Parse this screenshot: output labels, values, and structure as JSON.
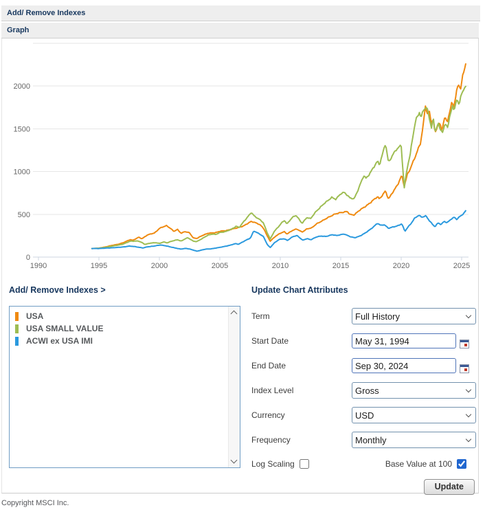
{
  "accordion": {
    "indexes_bar": "Add/ Remove Indexes",
    "graph_bar": "Graph"
  },
  "legend_panel": {
    "heading": "Add/ Remove Indexes >",
    "items": [
      {
        "label": "USA",
        "color": "#ef8a10"
      },
      {
        "label": "USA SMALL VALUE",
        "color": "#9ebd53"
      },
      {
        "label": "ACWI ex USA IMI",
        "color": "#2a99de"
      }
    ]
  },
  "form": {
    "heading": "Update Chart Attributes",
    "fields": [
      {
        "name": "term",
        "label": "Term",
        "type": "select",
        "value": "Full History"
      },
      {
        "name": "start-date",
        "label": "Start Date",
        "type": "date",
        "value": "May 31, 1994"
      },
      {
        "name": "end-date",
        "label": "End Date",
        "type": "date",
        "value": "Sep 30, 2024"
      },
      {
        "name": "index-level",
        "label": "Index Level",
        "type": "select",
        "value": "Gross"
      },
      {
        "name": "currency",
        "label": "Currency",
        "type": "select",
        "value": "USD"
      },
      {
        "name": "frequency",
        "label": "Frequency",
        "type": "select",
        "value": "Monthly"
      }
    ],
    "log_scaling_label": "Log Scaling",
    "log_scaling_checked": false,
    "base_value_label": "Base Value at 100",
    "base_value_checked": true,
    "update_button": "Update"
  },
  "footer": {
    "copyright": "Copyright MSCI Inc."
  },
  "chart_data": {
    "type": "line",
    "frequency": "monthly",
    "x_ticks": [
      1990,
      1995,
      2000,
      2005,
      2010,
      2015,
      2020,
      2025
    ],
    "y_ticks": [
      0,
      500,
      1000,
      1500,
      2000
    ],
    "y_max_grid": 2500,
    "grid": true,
    "base_value": 100,
    "colors": {
      "grid": "#e6e6e6",
      "axis": "#ccd5e0",
      "tick_label": "#666666"
    },
    "series": [
      {
        "name": "USA",
        "color": "#ef8a10",
        "points": [
          [
            1994.42,
            100
          ],
          [
            1995,
            104
          ],
          [
            1995.5,
            117
          ],
          [
            1996,
            134
          ],
          [
            1996.5,
            147
          ],
          [
            1997,
            167
          ],
          [
            1997.6,
            205
          ],
          [
            1997.8,
            196
          ],
          [
            1998.3,
            232
          ],
          [
            1998.55,
            214
          ],
          [
            1999,
            258
          ],
          [
            1999.6,
            282
          ],
          [
            2000,
            335
          ],
          [
            2000.3,
            352
          ],
          [
            2000.6,
            368
          ],
          [
            2000.9,
            338
          ],
          [
            2001.2,
            300
          ],
          [
            2001.5,
            322
          ],
          [
            2001.8,
            278
          ],
          [
            2002.1,
            298
          ],
          [
            2002.5,
            282
          ],
          [
            2002.8,
            224
          ],
          [
            2003.1,
            218
          ],
          [
            2003.6,
            255
          ],
          [
            2004,
            278
          ],
          [
            2004.6,
            284
          ],
          [
            2005,
            302
          ],
          [
            2005.5,
            308
          ],
          [
            2006,
            328
          ],
          [
            2006.5,
            342
          ],
          [
            2007,
            368
          ],
          [
            2007.6,
            416
          ],
          [
            2007.9,
            406
          ],
          [
            2008.3,
            380
          ],
          [
            2008.65,
            330
          ],
          [
            2008.9,
            252
          ],
          [
            2009.17,
            186
          ],
          [
            2009.6,
            242
          ],
          [
            2010,
            280
          ],
          [
            2010.35,
            296
          ],
          [
            2010.55,
            268
          ],
          [
            2011,
            312
          ],
          [
            2011.35,
            328
          ],
          [
            2011.8,
            292
          ],
          [
            2012.2,
            330
          ],
          [
            2012.6,
            340
          ],
          [
            2013,
            390
          ],
          [
            2013.5,
            425
          ],
          [
            2014,
            468
          ],
          [
            2014.5,
            500
          ],
          [
            2015,
            522
          ],
          [
            2015.55,
            532
          ],
          [
            2015.75,
            498
          ],
          [
            2016.1,
            494
          ],
          [
            2016.5,
            540
          ],
          [
            2017,
            590
          ],
          [
            2017.5,
            640
          ],
          [
            2018.05,
            710
          ],
          [
            2018.2,
            680
          ],
          [
            2018.7,
            770
          ],
          [
            2018.95,
            680
          ],
          [
            2019.3,
            760
          ],
          [
            2019.7,
            840
          ],
          [
            2020.05,
            960
          ],
          [
            2020.25,
            830
          ],
          [
            2020.5,
            960
          ],
          [
            2020.75,
            1030
          ],
          [
            2021,
            1120
          ],
          [
            2021.3,
            1230
          ],
          [
            2021.6,
            1330
          ],
          [
            2021.9,
            1620
          ],
          [
            2022.0,
            1780
          ],
          [
            2022.15,
            1680
          ],
          [
            2022.3,
            1720
          ],
          [
            2022.5,
            1560
          ],
          [
            2022.65,
            1620
          ],
          [
            2022.8,
            1430
          ],
          [
            2023.0,
            1540
          ],
          [
            2023.15,
            1580
          ],
          [
            2023.35,
            1480
          ],
          [
            2023.6,
            1640
          ],
          [
            2023.8,
            1560
          ],
          [
            2024.0,
            1700
          ],
          [
            2024.2,
            1810
          ],
          [
            2024.35,
            1760
          ],
          [
            2024.55,
            1920
          ],
          [
            2024.75,
            2010
          ],
          [
            2024.9,
            1960
          ],
          [
            2025.05,
            2090
          ],
          [
            2025.2,
            2180
          ],
          [
            2025.35,
            2270
          ]
        ]
      },
      {
        "name": "USA SMALL VALUE",
        "color": "#9ebd53",
        "points": [
          [
            1994.42,
            100
          ],
          [
            1995,
            103
          ],
          [
            1995.5,
            112
          ],
          [
            1996,
            126
          ],
          [
            1996.5,
            136
          ],
          [
            1997,
            152
          ],
          [
            1997.6,
            186
          ],
          [
            1998.25,
            188
          ],
          [
            1998.6,
            166
          ],
          [
            1998.8,
            148
          ],
          [
            1999.2,
            162
          ],
          [
            1999.7,
            168
          ],
          [
            2000,
            160
          ],
          [
            2000.35,
            176
          ],
          [
            2000.65,
            166
          ],
          [
            2001,
            186
          ],
          [
            2001.5,
            202
          ],
          [
            2001.8,
            186
          ],
          [
            2002.1,
            212
          ],
          [
            2002.35,
            226
          ],
          [
            2002.8,
            186
          ],
          [
            2003.1,
            182
          ],
          [
            2003.6,
            220
          ],
          [
            2004,
            256
          ],
          [
            2004.4,
            270
          ],
          [
            2004.65,
            262
          ],
          [
            2005,
            288
          ],
          [
            2005.5,
            298
          ],
          [
            2006,
            330
          ],
          [
            2006.35,
            360
          ],
          [
            2006.6,
            344
          ],
          [
            2007,
            420
          ],
          [
            2007.4,
            486
          ],
          [
            2007.6,
            520
          ],
          [
            2007.85,
            480
          ],
          [
            2008.3,
            440
          ],
          [
            2008.6,
            400
          ],
          [
            2008.9,
            290
          ],
          [
            2009.17,
            212
          ],
          [
            2009.5,
            300
          ],
          [
            2009.8,
            345
          ],
          [
            2010.1,
            400
          ],
          [
            2010.35,
            430
          ],
          [
            2010.55,
            385
          ],
          [
            2011,
            465
          ],
          [
            2011.3,
            490
          ],
          [
            2011.8,
            392
          ],
          [
            2012.2,
            465
          ],
          [
            2012.5,
            448
          ],
          [
            2013,
            540
          ],
          [
            2013.5,
            610
          ],
          [
            2013.9,
            655
          ],
          [
            2014.25,
            700
          ],
          [
            2014.6,
            675
          ],
          [
            2015,
            740
          ],
          [
            2015.3,
            760
          ],
          [
            2015.75,
            690
          ],
          [
            2016.1,
            680
          ],
          [
            2016.5,
            810
          ],
          [
            2016.9,
            950
          ],
          [
            2017.1,
            920
          ],
          [
            2017.5,
            1000
          ],
          [
            2018.05,
            1120
          ],
          [
            2018.2,
            1080
          ],
          [
            2018.7,
            1330
          ],
          [
            2018.95,
            1100
          ],
          [
            2019.3,
            1200
          ],
          [
            2019.6,
            1260
          ],
          [
            2020.0,
            1300
          ],
          [
            2020.25,
            810
          ],
          [
            2020.5,
            1050
          ],
          [
            2020.75,
            1200
          ],
          [
            2020.95,
            1400
          ],
          [
            2021.2,
            1600
          ],
          [
            2021.5,
            1700
          ],
          [
            2021.65,
            1630
          ],
          [
            2021.85,
            1720
          ],
          [
            2022.1,
            1750
          ],
          [
            2022.3,
            1650
          ],
          [
            2022.5,
            1520
          ],
          [
            2022.65,
            1620
          ],
          [
            2022.8,
            1460
          ],
          [
            2023.05,
            1560
          ],
          [
            2023.2,
            1500
          ],
          [
            2023.45,
            1470
          ],
          [
            2023.65,
            1560
          ],
          [
            2023.85,
            1520
          ],
          [
            2024.05,
            1650
          ],
          [
            2024.25,
            1780
          ],
          [
            2024.4,
            1720
          ],
          [
            2024.6,
            1850
          ],
          [
            2024.8,
            1790
          ],
          [
            2025.0,
            1900
          ],
          [
            2025.15,
            1950
          ],
          [
            2025.25,
            1990
          ],
          [
            2025.35,
            1995
          ]
        ]
      },
      {
        "name": "ACWI ex USA IMI",
        "color": "#2a99de",
        "points": [
          [
            1994.42,
            100
          ],
          [
            1995,
            100
          ],
          [
            1995.5,
            104
          ],
          [
            1996,
            108
          ],
          [
            1996.5,
            112
          ],
          [
            1997,
            118
          ],
          [
            1997.5,
            128
          ],
          [
            1998,
            122
          ],
          [
            1998.65,
            106
          ],
          [
            1999,
            120
          ],
          [
            1999.5,
            127
          ],
          [
            2000.1,
            142
          ],
          [
            2000.5,
            132
          ],
          [
            2001,
            116
          ],
          [
            2001.75,
            93
          ],
          [
            2002.2,
            102
          ],
          [
            2002.5,
            94
          ],
          [
            2003.1,
            69
          ],
          [
            2003.5,
            82
          ],
          [
            2003.8,
            92
          ],
          [
            2004.3,
            97
          ],
          [
            2004.8,
            108
          ],
          [
            2005.3,
            122
          ],
          [
            2005.8,
            136
          ],
          [
            2006.3,
            158
          ],
          [
            2006.55,
            150
          ],
          [
            2007.2,
            200
          ],
          [
            2007.55,
            225
          ],
          [
            2007.8,
            305
          ],
          [
            2008.3,
            270
          ],
          [
            2008.6,
            240
          ],
          [
            2008.95,
            140
          ],
          [
            2009.17,
            112
          ],
          [
            2009.5,
            165
          ],
          [
            2009.9,
            205
          ],
          [
            2010.3,
            215
          ],
          [
            2010.6,
            195
          ],
          [
            2011.05,
            240
          ],
          [
            2011.4,
            252
          ],
          [
            2011.85,
            196
          ],
          [
            2012.2,
            215
          ],
          [
            2012.55,
            204
          ],
          [
            2013.0,
            235
          ],
          [
            2013.4,
            247
          ],
          [
            2013.8,
            240
          ],
          [
            2014.3,
            262
          ],
          [
            2014.7,
            252
          ],
          [
            2015.3,
            270
          ],
          [
            2015.8,
            238
          ],
          [
            2016.15,
            225
          ],
          [
            2016.6,
            248
          ],
          [
            2017.0,
            278
          ],
          [
            2017.5,
            330
          ],
          [
            2018.05,
            395
          ],
          [
            2018.3,
            370
          ],
          [
            2018.6,
            380
          ],
          [
            2018.95,
            335
          ],
          [
            2019.4,
            355
          ],
          [
            2019.8,
            370
          ],
          [
            2020.05,
            390
          ],
          [
            2020.3,
            300
          ],
          [
            2020.55,
            350
          ],
          [
            2020.8,
            390
          ],
          [
            2021.1,
            450
          ],
          [
            2021.45,
            490
          ],
          [
            2021.7,
            468
          ],
          [
            2022.05,
            480
          ],
          [
            2022.3,
            430
          ],
          [
            2022.55,
            390
          ],
          [
            2022.8,
            355
          ],
          [
            2023.05,
            400
          ],
          [
            2023.3,
            378
          ],
          [
            2023.55,
            420
          ],
          [
            2023.8,
            402
          ],
          [
            2024.1,
            440
          ],
          [
            2024.4,
            465
          ],
          [
            2024.6,
            442
          ],
          [
            2024.8,
            470
          ],
          [
            2025.0,
            490
          ],
          [
            2025.15,
            505
          ],
          [
            2025.35,
            545
          ]
        ]
      }
    ]
  }
}
